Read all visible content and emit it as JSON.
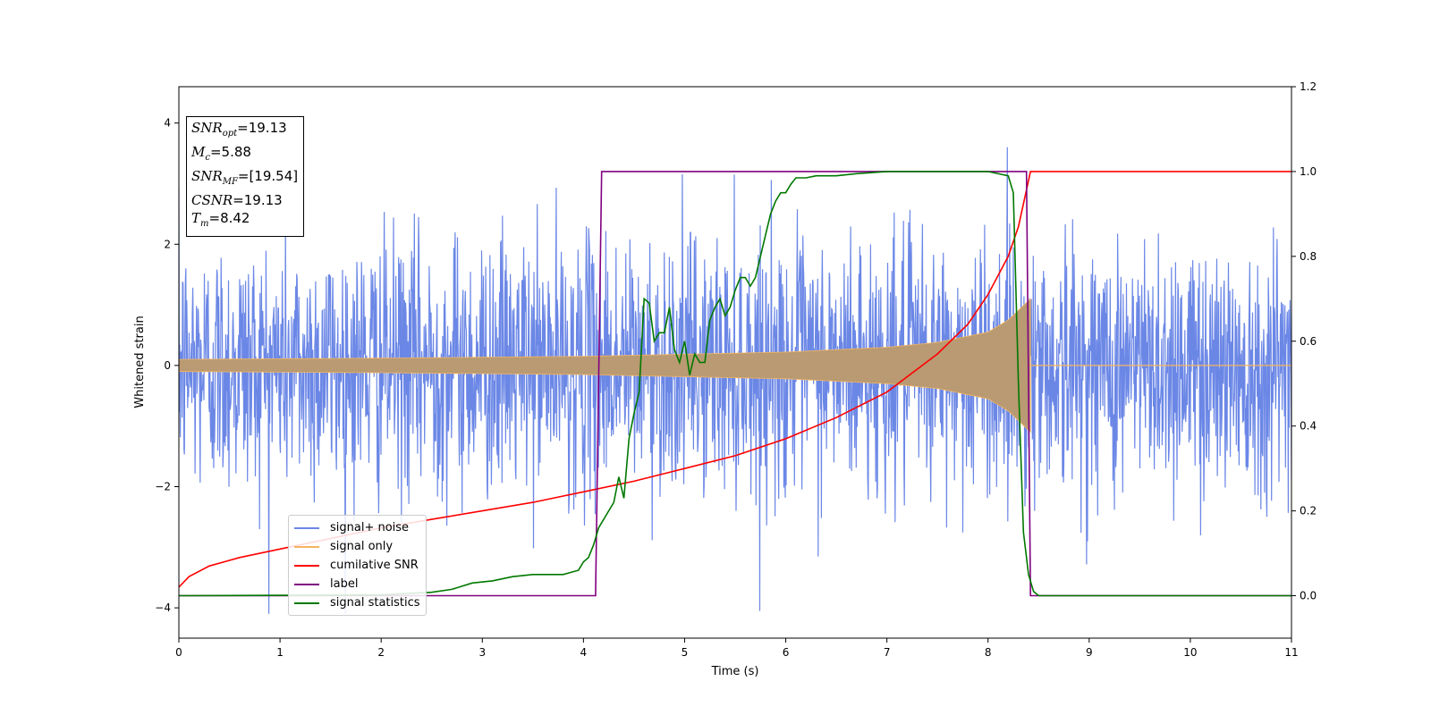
{
  "chart_data": {
    "type": "line",
    "xlabel": "Time (s)",
    "ylabel": "Whitened strain",
    "xlim": [
      0,
      11
    ],
    "ylim_left": [
      -4.5,
      4.6
    ],
    "ylim_right": [
      -0.1,
      1.2
    ],
    "xticks": [
      "0",
      "1",
      "2",
      "3",
      "4",
      "5",
      "6",
      "7",
      "8",
      "9",
      "10",
      "11"
    ],
    "yticks_left": [
      "−4",
      "−2",
      "0",
      "2",
      "4"
    ],
    "yticks_right": [
      "0.0",
      "0.2",
      "0.4",
      "0.6",
      "0.8",
      "1.0",
      "1.2"
    ],
    "grid": false,
    "legend_position": "lower-left",
    "annotations": [
      {
        "var": "SNR",
        "sub": "opt",
        "value": "=19.13"
      },
      {
        "var": "M",
        "sub": "c",
        "value": "=5.88"
      },
      {
        "var": "SNR",
        "sub": "MF",
        "value": "=[19.54]"
      },
      {
        "var": "CSNR",
        "sub": "",
        "value": "=19.13"
      },
      {
        "var": "T",
        "sub": "m",
        "value": "=8.42"
      }
    ],
    "series": [
      {
        "name": "signal+ noise",
        "axis": "left",
        "color": "#6b87e6",
        "description_values": "noise band approx ±2.2 with peaks to 4.2 (t≈4.72) and -4.1 (t≈9.0)"
      },
      {
        "name": "signal only",
        "axis": "left",
        "color": "#f5b561",
        "amplitude_envelope": {
          "t": [
            0,
            2,
            4,
            6,
            7,
            7.5,
            8,
            8.2,
            8.42
          ],
          "amp": [
            0.1,
            0.12,
            0.15,
            0.22,
            0.3,
            0.38,
            0.55,
            0.75,
            1.1
          ]
        },
        "merger_time": 8.42
      },
      {
        "name": "cumilative SNR",
        "axis": "right",
        "color": "#ff0000",
        "x": [
          0,
          0.1,
          0.3,
          0.6,
          1,
          1.5,
          2,
          2.5,
          3,
          3.5,
          4,
          4.5,
          5,
          5.5,
          6,
          6.5,
          7,
          7.5,
          7.8,
          8.0,
          8.2,
          8.3,
          8.42,
          11
        ],
        "y": [
          0.02,
          0.045,
          0.07,
          0.09,
          0.11,
          0.135,
          0.16,
          0.18,
          0.2,
          0.22,
          0.245,
          0.27,
          0.3,
          0.33,
          0.37,
          0.42,
          0.48,
          0.57,
          0.64,
          0.71,
          0.8,
          0.87,
          1.0,
          1.0
        ]
      },
      {
        "name": "label",
        "axis": "right",
        "color": "#800080",
        "x": [
          0,
          4.12,
          4.18,
          8.38,
          8.42,
          11
        ],
        "y": [
          0.0,
          0.0,
          1.0,
          1.0,
          0.0,
          0.0
        ]
      },
      {
        "name": "signal statistics",
        "axis": "right",
        "color": "#007800",
        "x": [
          0,
          2,
          2.5,
          2.7,
          2.9,
          3.1,
          3.3,
          3.5,
          3.8,
          3.95,
          4.0,
          4.05,
          4.1,
          4.15,
          4.25,
          4.3,
          4.35,
          4.4,
          4.45,
          4.5,
          4.55,
          4.6,
          4.65,
          4.7,
          4.75,
          4.8,
          4.85,
          4.9,
          4.95,
          5.0,
          5.05,
          5.1,
          5.15,
          5.2,
          5.25,
          5.3,
          5.35,
          5.4,
          5.45,
          5.5,
          5.55,
          5.6,
          5.65,
          5.7,
          5.75,
          5.8,
          5.85,
          5.9,
          5.95,
          6.0,
          6.05,
          6.1,
          6.15,
          6.2,
          6.3,
          6.5,
          6.7,
          7.0,
          7.5,
          8.0,
          8.2,
          8.25,
          8.3,
          8.35,
          8.4,
          8.45,
          8.5,
          9,
          11
        ],
        "y": [
          0.0,
          0.002,
          0.008,
          0.015,
          0.03,
          0.035,
          0.045,
          0.05,
          0.05,
          0.06,
          0.08,
          0.09,
          0.12,
          0.16,
          0.2,
          0.22,
          0.28,
          0.23,
          0.37,
          0.43,
          0.48,
          0.7,
          0.69,
          0.6,
          0.62,
          0.62,
          0.68,
          0.58,
          0.55,
          0.6,
          0.52,
          0.57,
          0.55,
          0.55,
          0.65,
          0.68,
          0.7,
          0.66,
          0.68,
          0.72,
          0.75,
          0.75,
          0.73,
          0.75,
          0.8,
          0.85,
          0.9,
          0.93,
          0.95,
          0.95,
          0.97,
          0.985,
          0.985,
          0.985,
          0.99,
          0.99,
          0.995,
          1.0,
          1.0,
          1.0,
          0.99,
          0.95,
          0.5,
          0.15,
          0.05,
          0.01,
          0.0,
          0.0,
          0.0
        ]
      }
    ]
  }
}
